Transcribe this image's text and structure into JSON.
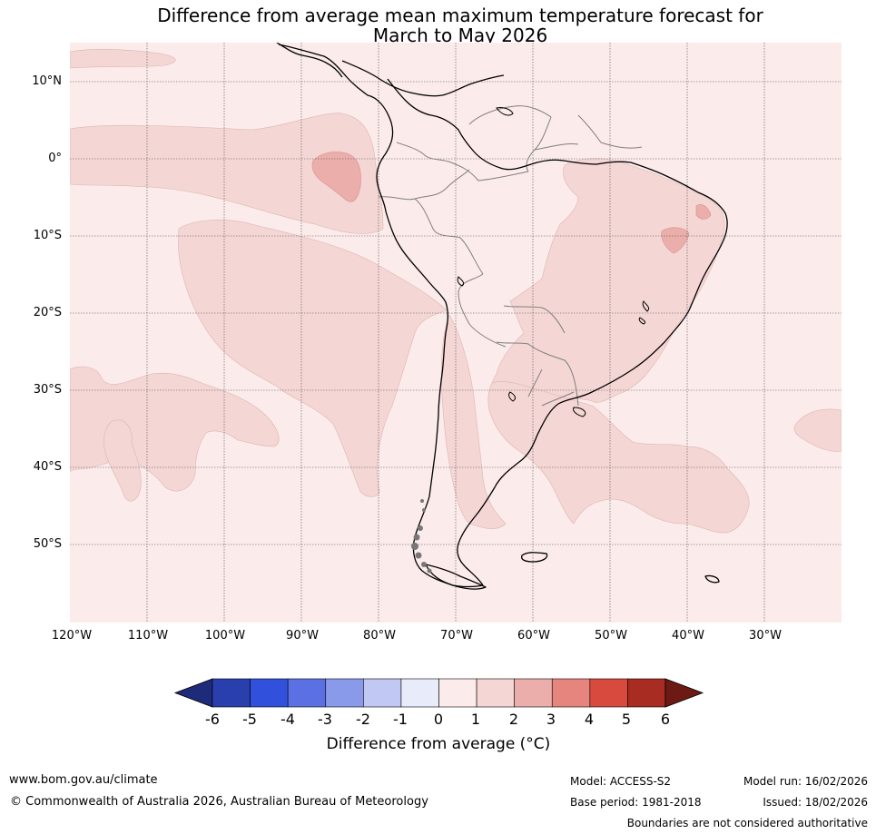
{
  "title": {
    "line1": "Difference from average mean maximum temperature forecast for",
    "line2": "March to May 2026"
  },
  "map": {
    "lat_labels": [
      "10°N",
      "0°",
      "10°S",
      "20°S",
      "30°S",
      "40°S",
      "50°S"
    ],
    "lon_labels": [
      "120°W",
      "110°W",
      "100°W",
      "90°W",
      "80°W",
      "70°W",
      "60°W",
      "50°W",
      "40°W",
      "30°W"
    ],
    "colors": {
      "bin_0_1": "#fbebea",
      "bin_1_2": "#f4d6d4",
      "bin_2_3": "#ebaeaa",
      "coast": "#000000",
      "borders": "#808080"
    }
  },
  "colorbar": {
    "ticks": [
      "-6",
      "-5",
      "-4",
      "-3",
      "-2",
      "-1",
      "0",
      "1",
      "2",
      "3",
      "4",
      "5",
      "6"
    ],
    "extend_low_color": "#1e2a7a",
    "extend_high_color": "#6e1a14",
    "colors": [
      "#2a3fae",
      "#3150dc",
      "#5a70e3",
      "#8a9aeb",
      "#c1c8f3",
      "#e8ebfa",
      "#fbebea",
      "#f4d6d4",
      "#ebaeaa",
      "#e6857d",
      "#d84a3e",
      "#a82c22"
    ],
    "label": "Difference from average (°C)"
  },
  "footer": {
    "website": "www.bom.gov.au/climate",
    "copyright": "© Commonwealth of Australia 2026, Australian Bureau of Meteorology",
    "model": "Model: ACCESS-S2",
    "base_period": "Base period: 1981-2018",
    "model_run": "Model run: 16/02/2026",
    "issued": "Issued: 18/02/2026",
    "disclaimer": "Boundaries are not considered authoritative"
  }
}
